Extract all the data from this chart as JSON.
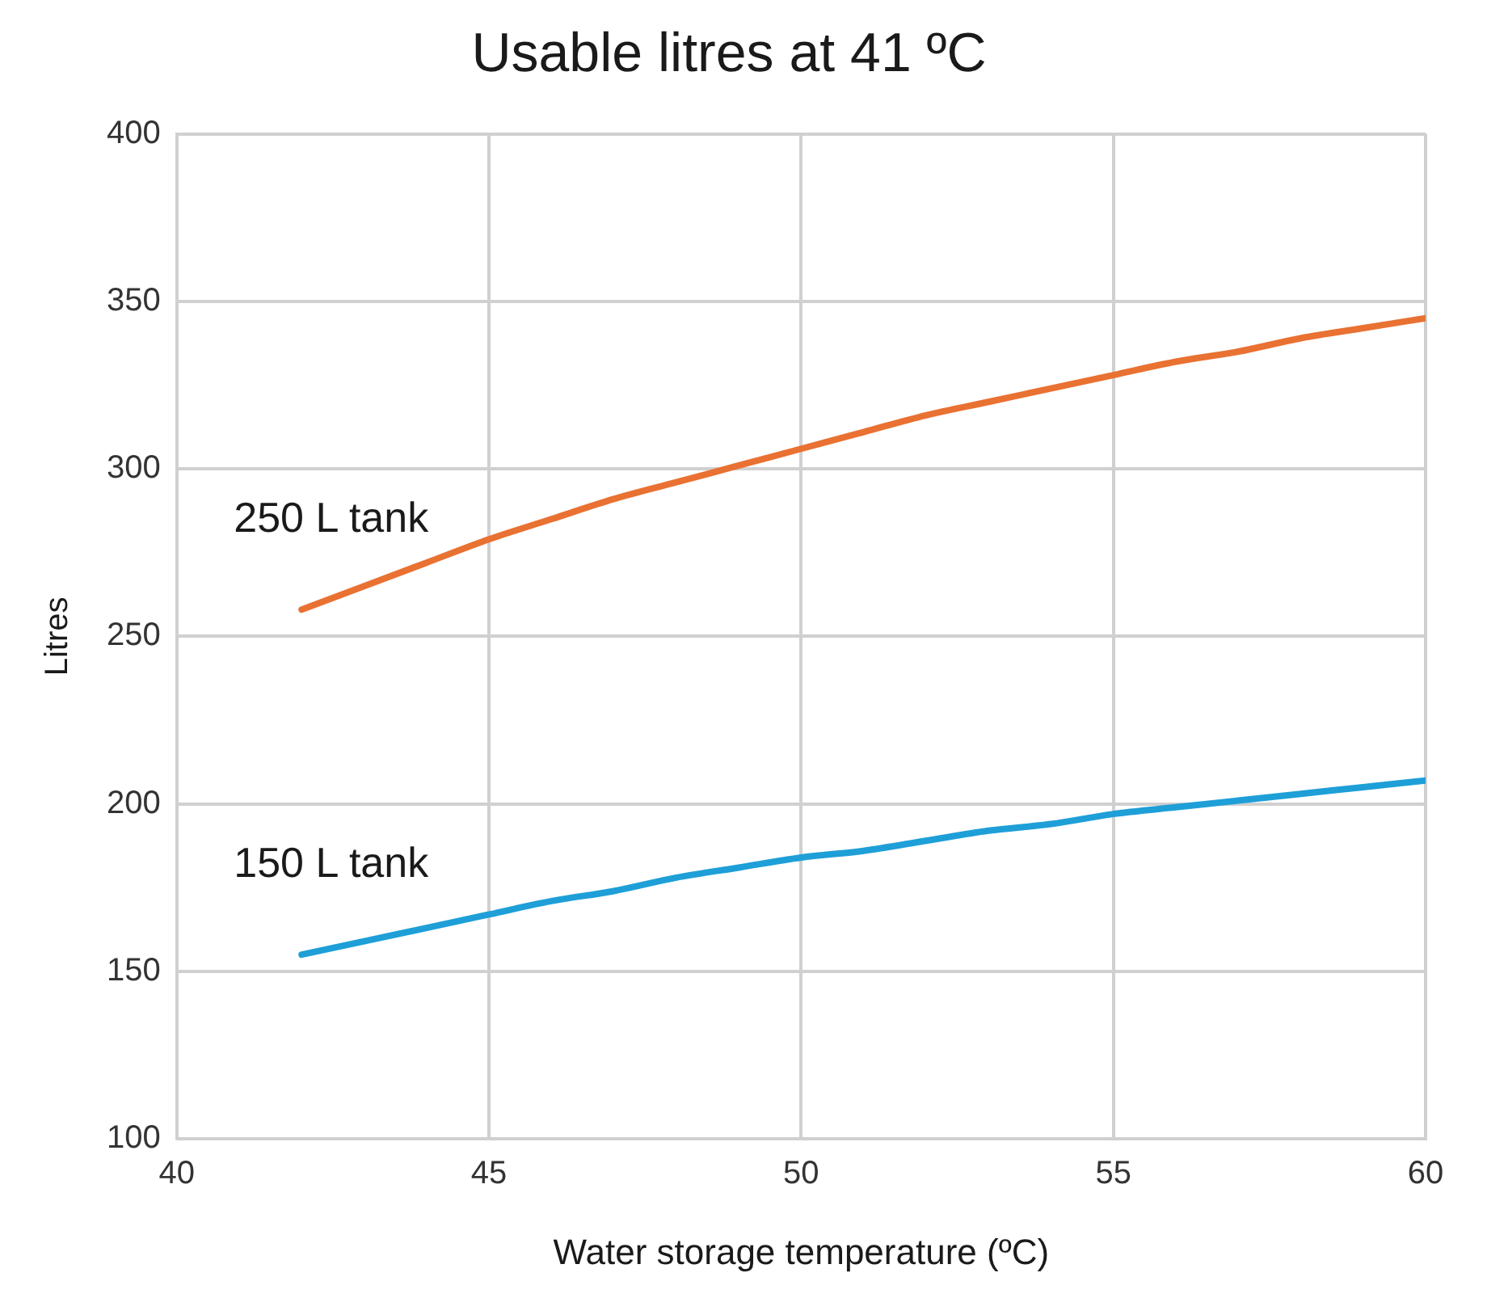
{
  "chart_data": {
    "type": "line",
    "title": "Usable litres at 41 ºC",
    "xlabel": "Water storage temperature (ºC)",
    "ylabel": "Litres",
    "x": [
      42,
      43,
      44,
      45,
      46,
      47,
      48,
      49,
      50,
      51,
      52,
      53,
      54,
      55,
      56,
      57,
      58,
      59,
      60
    ],
    "series": [
      {
        "name": "250 L tank",
        "color": "#e97132",
        "values": [
          258,
          265,
          272,
          279,
          285,
          291,
          296,
          301,
          306,
          311,
          316,
          320,
          324,
          328,
          332,
          335,
          339,
          342,
          345
        ]
      },
      {
        "name": "150 L tank",
        "color": "#1e9fd8",
        "values": [
          155,
          159,
          163,
          167,
          171,
          174,
          178,
          181,
          184,
          186,
          189,
          192,
          194,
          197,
          199,
          201,
          203,
          205,
          207
        ]
      }
    ],
    "xlim": [
      40,
      60
    ],
    "xticks": [
      40,
      45,
      50,
      55,
      60
    ],
    "ylim": [
      100,
      400
    ],
    "yticks": [
      100,
      150,
      200,
      250,
      300,
      350,
      400
    ],
    "grid": true,
    "legend": false,
    "marker": "none",
    "line_style": "solid"
  }
}
